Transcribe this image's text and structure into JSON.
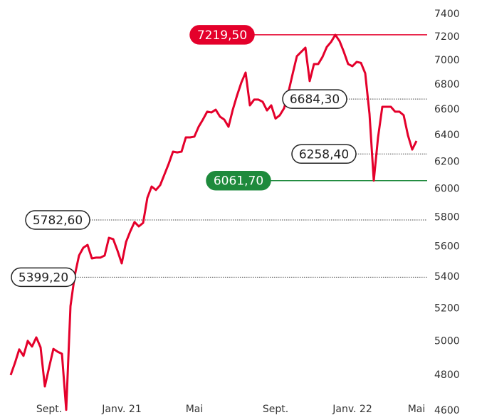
{
  "chart_data": {
    "type": "line",
    "yscale": "log",
    "color": "#e4002b",
    "categories": [
      null,
      null,
      null,
      null,
      null,
      null,
      null,
      null,
      null,
      "Sept.",
      null,
      null,
      null,
      null,
      null,
      null,
      null,
      null,
      null,
      null,
      null,
      null,
      null,
      null,
      null,
      null,
      "Janv. 21",
      null,
      null,
      null,
      null,
      null,
      null,
      null,
      null,
      null,
      null,
      null,
      null,
      null,
      null,
      null,
      null,
      "Mai",
      null,
      null,
      null,
      null,
      null,
      null,
      null,
      null,
      null,
      null,
      null,
      null,
      null,
      null,
      null,
      null,
      null,
      null,
      "Sept.",
      null,
      null,
      null,
      null,
      null,
      null,
      null,
      null,
      null,
      null,
      null,
      null,
      null,
      null,
      null,
      null,
      null,
      "Janv. 22",
      null,
      null,
      null,
      null,
      null,
      null,
      null,
      null,
      null,
      null,
      null,
      null,
      null,
      null,
      "Mai"
    ],
    "values": [
      4801,
      4871,
      4951,
      4913,
      5002,
      4968,
      5023,
      4963,
      4736,
      4846,
      4954,
      4937,
      4925,
      4605,
      5215,
      5410,
      5541,
      5593,
      5612,
      5522,
      5527,
      5527,
      5541,
      5660,
      5651,
      5574,
      5489,
      5631,
      5704,
      5768,
      5738,
      5762,
      5938,
      6019,
      5994,
      6029,
      6107,
      6186,
      6276,
      6270,
      6276,
      6384,
      6384,
      6390,
      6466,
      6522,
      6584,
      6578,
      6600,
      6545,
      6522,
      6466,
      6600,
      6714,
      6818,
      6900,
      6634,
      6680,
      6680,
      6662,
      6594,
      6634,
      6530,
      6556,
      6611,
      6737,
      6888,
      7037,
      7073,
      7109,
      6830,
      6971,
      6971,
      7031,
      7115,
      7158,
      7219.5,
      7165,
      7073,
      6971,
      6953,
      6989,
      6981,
      6894,
      6567,
      6061.7,
      6384,
      6623,
      6623,
      6623,
      6584,
      6584,
      6556,
      6400,
      6292,
      6357
    ],
    "ylim": [
      4600,
      7400
    ],
    "yticks": [
      4600,
      4800,
      5000,
      5200,
      5400,
      5600,
      5800,
      6000,
      6200,
      6400,
      6600,
      6800,
      7000,
      7200,
      7400
    ],
    "annotations": [
      {
        "value": 7219.5,
        "label": "7219,50",
        "color": "#e4002b",
        "filled": true
      },
      {
        "value": 6684.3,
        "label": "6684,30",
        "color": "#444444",
        "filled": false
      },
      {
        "value": 6258.4,
        "label": "6258,40",
        "color": "#444444",
        "filled": false
      },
      {
        "value": 6061.7,
        "label": "6061,70",
        "color": "#1e8a3c",
        "filled": true
      },
      {
        "value": 5782.6,
        "label": "5782,60",
        "color": "#444444",
        "filled": false
      },
      {
        "value": 5399.2,
        "label": "5399,20",
        "color": "#444444",
        "filled": false
      }
    ]
  }
}
